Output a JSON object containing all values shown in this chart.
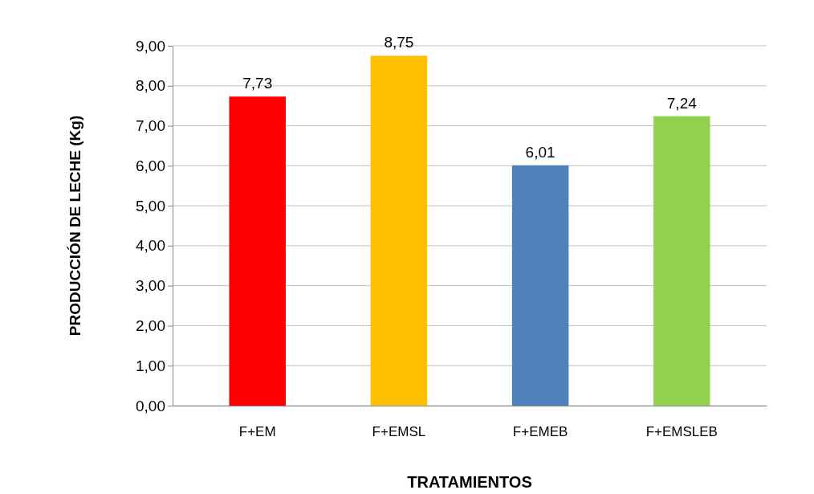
{
  "chart_data": {
    "type": "bar",
    "xlabel": "TRATAMIENTOS",
    "ylabel": "PRODUCCIÓN DE LECHE (Kg)",
    "categories": [
      "F+EM",
      "F+EMSL",
      "F+EMEB",
      "F+EMSLEB"
    ],
    "values": [
      7.73,
      8.75,
      6.01,
      7.24
    ],
    "colors": [
      "#ff0000",
      "#ffc000",
      "#4f81bd",
      "#92d050"
    ],
    "value_labels": [
      "7,73",
      "8,75",
      "6,01",
      "7,24"
    ],
    "ylim": [
      0,
      9
    ],
    "yticks": [
      {
        "value": 0,
        "label": "0,00"
      },
      {
        "value": 1,
        "label": "1,00"
      },
      {
        "value": 2,
        "label": "2,00"
      },
      {
        "value": 3,
        "label": "3,00"
      },
      {
        "value": 4,
        "label": "4,00"
      },
      {
        "value": 5,
        "label": "5,00"
      },
      {
        "value": 6,
        "label": "6,00"
      },
      {
        "value": 7,
        "label": "7,00"
      },
      {
        "value": 8,
        "label": "8,00"
      },
      {
        "value": 9,
        "label": "9,00"
      }
    ],
    "grid": "y"
  }
}
